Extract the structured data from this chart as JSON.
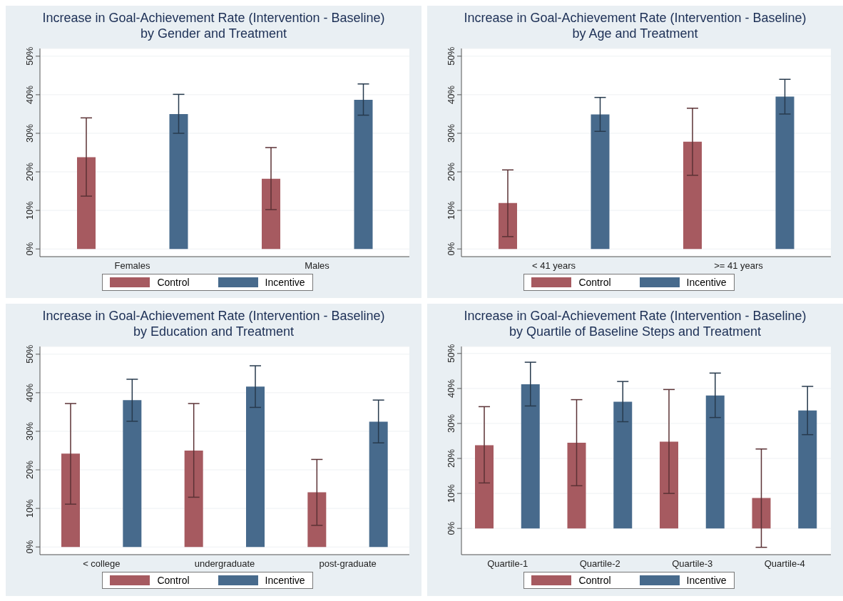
{
  "chart_data": [
    {
      "type": "bar",
      "title": "Increase in Goal-Achievement Rate (Intervention - Baseline)\nby Gender and Treatment",
      "categories": [
        "Females",
        "Males"
      ],
      "series": [
        {
          "name": "Control",
          "color": "#a65a60",
          "values": [
            23.8,
            18.2
          ],
          "errors": [
            [
              13.7,
              34
            ],
            [
              10.2,
              26.3
            ]
          ]
        },
        {
          "name": "Incentive",
          "color": "#476a8c",
          "values": [
            35,
            38.7
          ],
          "errors": [
            [
              30,
              40.1
            ],
            [
              34.7,
              42.8
            ]
          ]
        }
      ],
      "ylim": [
        -2,
        52
      ],
      "yticks": [
        {
          "value": 0,
          "label": "0%"
        },
        {
          "value": 10,
          "label": "10%"
        },
        {
          "value": 20,
          "label": "20%"
        },
        {
          "value": 30,
          "label": "30%"
        },
        {
          "value": 40,
          "label": "40%"
        },
        {
          "value": 50,
          "label": "50%"
        }
      ],
      "grid": "y",
      "legend": "bottom"
    },
    {
      "type": "bar",
      "title": "Increase in Goal-Achievement Rate (Intervention - Baseline)\nby Age and Treatment",
      "categories": [
        "< 41 years",
        ">= 41 years"
      ],
      "series": [
        {
          "name": "Control",
          "color": "#a65a60",
          "values": [
            11.9,
            27.8
          ],
          "errors": [
            [
              3.2,
              20.5
            ],
            [
              19.1,
              36.5
            ]
          ]
        },
        {
          "name": "Incentive",
          "color": "#476a8c",
          "values": [
            34.9,
            39.5
          ],
          "errors": [
            [
              30.5,
              39.3
            ],
            [
              35,
              44
            ]
          ]
        }
      ],
      "ylim": [
        -2,
        52
      ],
      "yticks": [
        {
          "value": 0,
          "label": "0%"
        },
        {
          "value": 10,
          "label": "10%"
        },
        {
          "value": 20,
          "label": "20%"
        },
        {
          "value": 30,
          "label": "30%"
        },
        {
          "value": 40,
          "label": "40%"
        },
        {
          "value": 50,
          "label": "50%"
        }
      ],
      "grid": "y",
      "legend": "bottom"
    },
    {
      "type": "bar",
      "title": "Increase in Goal-Achievement Rate (Intervention - Baseline)\nby Education and Treatment",
      "categories": [
        "< college",
        "undergraduate",
        "post-graduate"
      ],
      "series": [
        {
          "name": "Control",
          "color": "#a65a60",
          "values": [
            24.2,
            25,
            14.2
          ],
          "errors": [
            [
              11.1,
              37.2
            ],
            [
              12.9,
              37.2
            ],
            [
              5.6,
              22.7
            ]
          ]
        },
        {
          "name": "Incentive",
          "color": "#476a8c",
          "values": [
            38.1,
            41.6,
            32.5
          ],
          "errors": [
            [
              32.6,
              43.5
            ],
            [
              36.2,
              47
            ],
            [
              27,
              38.1
            ]
          ]
        }
      ],
      "ylim": [
        -2,
        52
      ],
      "yticks": [
        {
          "value": 0,
          "label": "0%"
        },
        {
          "value": 10,
          "label": "10%"
        },
        {
          "value": 20,
          "label": "20%"
        },
        {
          "value": 30,
          "label": "30%"
        },
        {
          "value": 40,
          "label": "40%"
        },
        {
          "value": 50,
          "label": "50%"
        }
      ],
      "grid": "y",
      "legend": "bottom"
    },
    {
      "type": "bar",
      "title": "Increase in Goal-Achievement Rate (Intervention - Baseline)\nby Quartile of Baseline Steps and Treatment",
      "categories": [
        "Quartile-1",
        "Quartile-2",
        "Quartile-3",
        "Quartile-4"
      ],
      "series": [
        {
          "name": "Control",
          "color": "#a65a60",
          "values": [
            23.8,
            24.5,
            24.8,
            8.7
          ],
          "errors": [
            [
              13,
              34.8
            ],
            [
              12.2,
              36.8
            ],
            [
              10,
              39.7
            ],
            [
              -5.4,
              22.7
            ]
          ]
        },
        {
          "name": "Incentive",
          "color": "#476a8c",
          "values": [
            41.2,
            36.2,
            38,
            33.7
          ],
          "errors": [
            [
              35,
              47.5
            ],
            [
              30.5,
              42
            ],
            [
              31.7,
              44.4
            ],
            [
              26.8,
              40.6
            ]
          ]
        }
      ],
      "ylim": [
        -7.5,
        52
      ],
      "yticks": [
        {
          "value": 0,
          "label": "0%"
        },
        {
          "value": 10,
          "label": "10%"
        },
        {
          "value": 20,
          "label": "20%"
        },
        {
          "value": 30,
          "label": "30%"
        },
        {
          "value": 40,
          "label": "40%"
        },
        {
          "value": 50,
          "label": "50%"
        }
      ],
      "grid": "y",
      "legend": "bottom"
    }
  ]
}
